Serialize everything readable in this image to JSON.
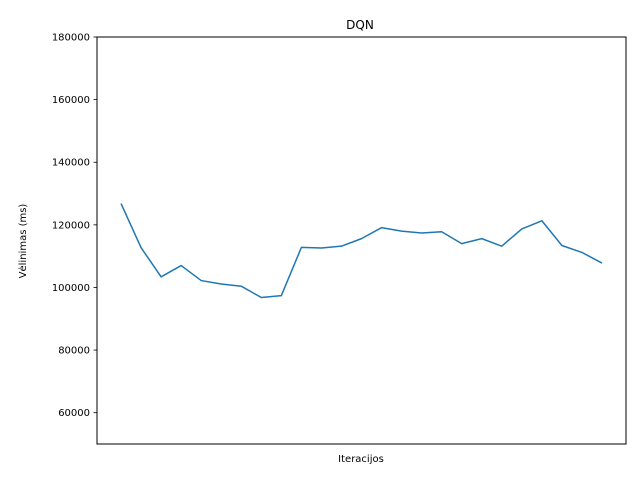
{
  "chart_data": {
    "type": "line",
    "title": "DQN",
    "xlabel": "Iteracijos",
    "ylabel": "Vėlinimas (ms)",
    "ylim": [
      50000,
      180000
    ],
    "yticks": [
      60000,
      80000,
      100000,
      120000,
      140000,
      160000,
      180000
    ],
    "ytick_labels": [
      "60000",
      "80000",
      "100000",
      "120000",
      "140000",
      "160000",
      "180000"
    ],
    "x_ticks_visible": false,
    "grid": false,
    "series": [
      {
        "color": "#1f77b4",
        "x": [
          0,
          1,
          2,
          3,
          4,
          5,
          6,
          7,
          8,
          9,
          10,
          11,
          12,
          13,
          14,
          15,
          16,
          17,
          18,
          19,
          20,
          21,
          22,
          23,
          24
        ],
        "values": [
          126800,
          112700,
          103400,
          107000,
          102200,
          101100,
          100400,
          96800,
          97400,
          112800,
          112600,
          113200,
          115600,
          119100,
          118000,
          117400,
          117800,
          114000,
          115600,
          113200,
          118700,
          121300,
          113400,
          111200,
          107800
        ]
      }
    ]
  }
}
